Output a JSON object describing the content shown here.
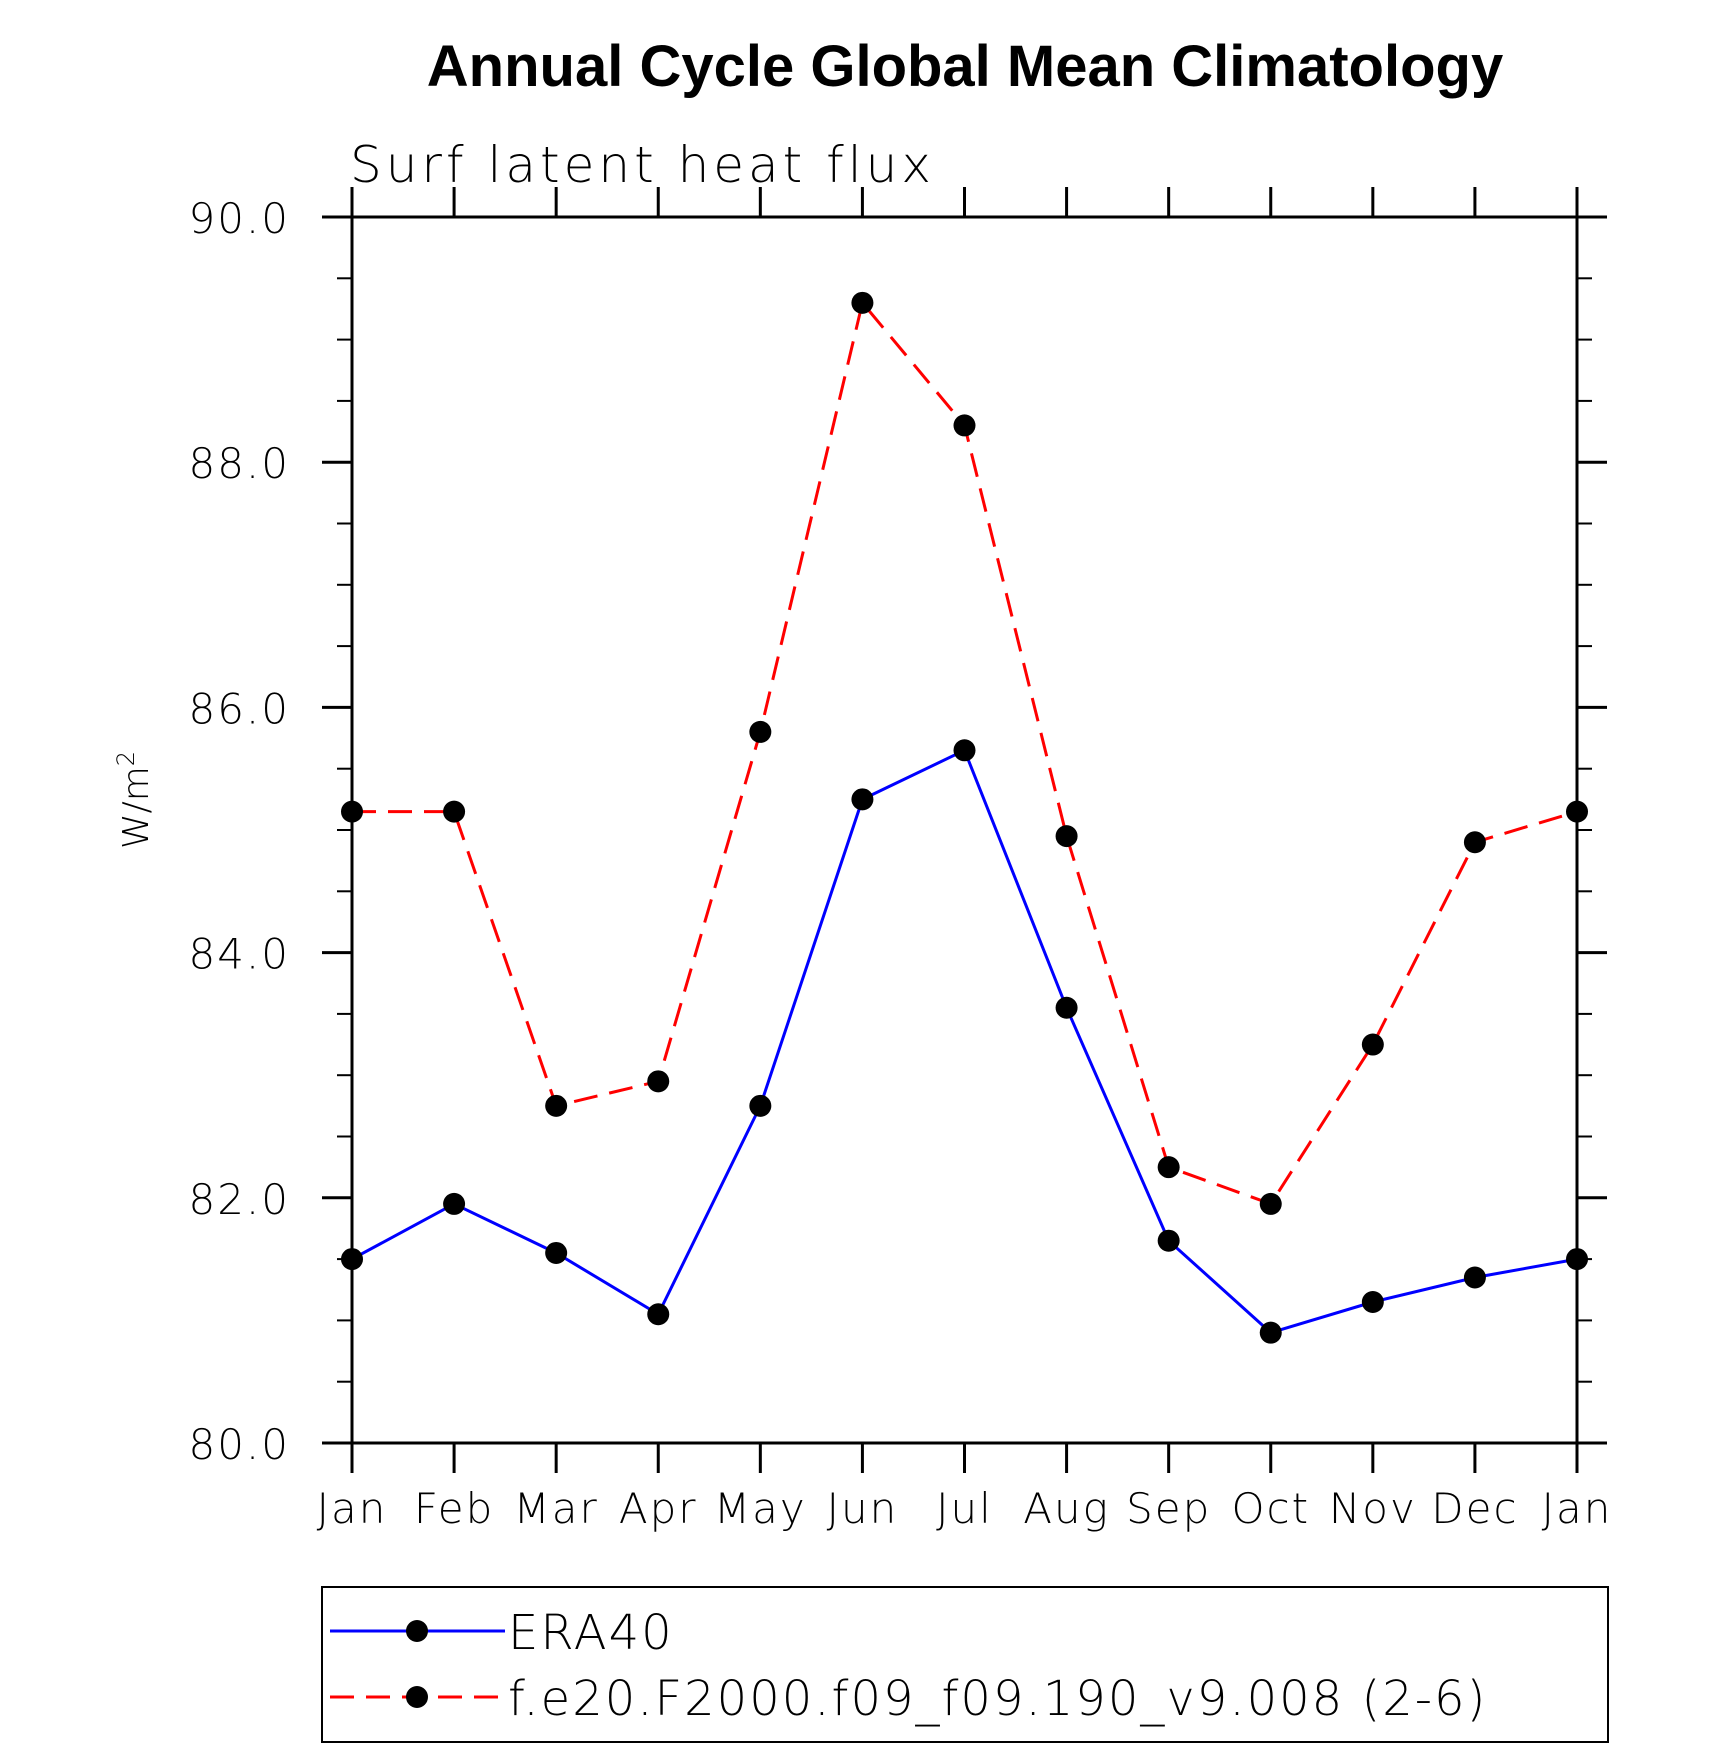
{
  "chart_data": {
    "type": "line",
    "title": "Annual Cycle Global Mean Climatology",
    "subtitle": "Surf latent heat flux",
    "ylabel": "W/m",
    "ylabel_superscript": "2",
    "xlabel": "",
    "categories": [
      "Jan",
      "Feb",
      "Mar",
      "Apr",
      "May",
      "Jun",
      "Jul",
      "Aug",
      "Sep",
      "Oct",
      "Nov",
      "Dec",
      "Jan"
    ],
    "ylim": [
      80.0,
      90.0
    ],
    "yticks": [
      "80.0",
      "82.0",
      "84.0",
      "86.0",
      "88.0",
      "90.0"
    ],
    "grid": false,
    "legend_position": "bottom",
    "series": [
      {
        "name": "ERA40",
        "color": "#0000ff",
        "dash": "solid",
        "marker": "filled-circle",
        "values": [
          81.5,
          81.95,
          81.55,
          81.05,
          82.75,
          85.25,
          85.65,
          83.55,
          81.65,
          80.9,
          81.15,
          81.35,
          81.5
        ]
      },
      {
        "name": "f.e20.F2000.f09_f09.190_v9.008 (2-6)",
        "color": "#ff0000",
        "dash": "dashed",
        "marker": "filled-circle",
        "values": [
          85.15,
          85.15,
          82.75,
          82.95,
          85.8,
          89.3,
          88.3,
          84.95,
          82.25,
          81.95,
          83.25,
          84.9,
          85.15
        ]
      }
    ]
  }
}
